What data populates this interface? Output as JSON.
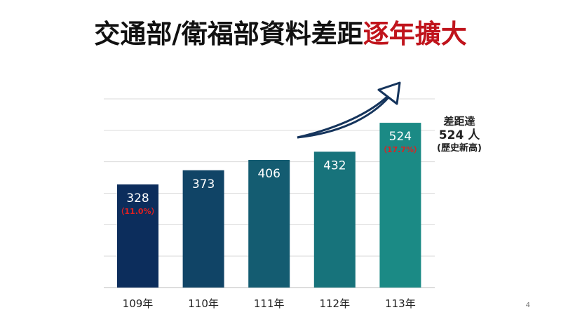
{
  "title": {
    "main": "交通部/衛福部資料差距",
    "highlight": "逐年擴大"
  },
  "page_number": "4",
  "callout": {
    "line1": "差距達",
    "line2": "524 人",
    "line3": "(歷史新高)"
  },
  "colors": {
    "bar_start": "#0c2d5c",
    "bar_end": "#1b8a85",
    "highlight": "#c0141c",
    "pct": "#e02020",
    "arrow": "#15345c"
  },
  "chart_data": {
    "type": "bar",
    "categories": [
      "109年",
      "110年",
      "111年",
      "112年",
      "113年"
    ],
    "values": [
      328,
      373,
      406,
      432,
      524
    ],
    "value_labels": [
      "328",
      "373",
      "406",
      "432",
      "524"
    ],
    "percent_labels": [
      "（11.0%）",
      "",
      "",
      "",
      "（17.7%）"
    ],
    "ylim": [
      0,
      600
    ],
    "grid": true,
    "trend_arrow": "up"
  }
}
